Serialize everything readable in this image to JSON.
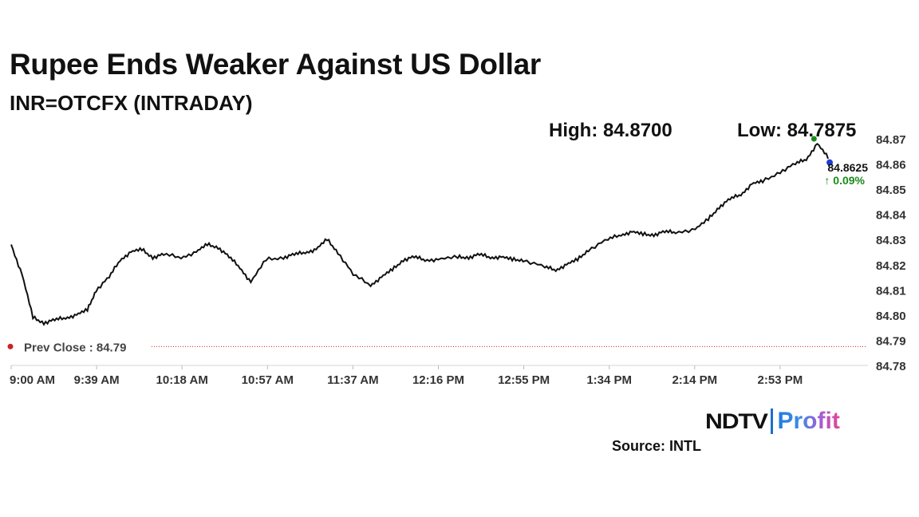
{
  "title": "Rupee Ends Weaker Against US Dollar",
  "subtitle": "INR=OTCFX (INTRADAY)",
  "high_label": "High: 84.8700",
  "low_label": "Low: 84.7875",
  "source": "Source: INTL",
  "logo": {
    "part1": "NDTV",
    "part2": "Profit"
  },
  "colors": {
    "line": "#111111",
    "prev_close": "#cc2222",
    "up": "#1a8a1a",
    "last_marker": "#1a3fd6"
  },
  "chart_data": {
    "type": "line",
    "ylim": [
      84.78,
      84.87
    ],
    "y_ticks": [
      84.87,
      84.86,
      84.85,
      84.84,
      84.83,
      84.82,
      84.81,
      84.8,
      84.79,
      84.78
    ],
    "y_tick_labels": [
      "84.87",
      "84.86",
      "84.85",
      "84.84",
      "84.83",
      "84.82",
      "84.81",
      "84.80",
      "84.79",
      "84.78"
    ],
    "x_tick_labels": [
      "9:00 AM",
      "9:39 AM",
      "10:18 AM",
      "10:57 AM",
      "11:37 AM",
      "12:16 PM",
      "12:55 PM",
      "1:34 PM",
      "2:14 PM",
      "2:53 PM"
    ],
    "prev_close": {
      "label": "Prev Close : 84.79",
      "value": 84.7875
    },
    "last": {
      "value_label": "84.8625",
      "change_label": "↑ 0.09%",
      "value": 84.8625
    },
    "series": [
      {
        "x": [
          "9:00 AM",
          "9:05 AM",
          "9:10 AM",
          "9:15 AM",
          "9:20 AM",
          "9:25 AM",
          "9:30 AM",
          "9:35 AM",
          "9:39 AM",
          "9:45 AM",
          "9:50 AM",
          "9:55 AM",
          "10:00 AM",
          "10:05 AM",
          "10:10 AM",
          "10:18 AM",
          "10:25 AM",
          "10:30 AM",
          "10:35 AM",
          "10:40 AM",
          "10:45 AM",
          "10:50 AM",
          "10:57 AM",
          "11:05 AM",
          "11:10 AM",
          "11:15 AM",
          "11:20 AM",
          "11:25 AM",
          "11:30 AM",
          "11:37 AM",
          "11:45 AM",
          "11:50 AM",
          "11:55 AM",
          "12:00 PM",
          "12:05 PM",
          "12:10 PM",
          "12:16 PM",
          "12:25 PM",
          "12:30 PM",
          "12:35 PM",
          "12:40 PM",
          "12:45 PM",
          "12:50 PM",
          "12:55 PM",
          "1:05 PM",
          "1:10 PM",
          "1:15 PM",
          "1:20 PM",
          "1:25 PM",
          "1:34 PM",
          "1:40 PM",
          "1:45 PM",
          "1:50 PM",
          "1:55 PM",
          "2:00 PM",
          "2:05 PM",
          "2:14 PM",
          "2:20 PM",
          "2:25 PM",
          "2:30 PM",
          "2:35 PM",
          "2:40 PM",
          "2:45 PM",
          "2:53 PM",
          "3:00 PM",
          "3:05 PM",
          "3:10 PM",
          "3:15 PM"
        ],
        "values": [
          84.828,
          84.816,
          84.799,
          84.797,
          84.798,
          84.799,
          84.8,
          84.802,
          84.81,
          84.815,
          84.822,
          84.825,
          84.826,
          84.823,
          84.824,
          84.823,
          84.825,
          84.828,
          84.827,
          84.823,
          84.819,
          84.813,
          84.822,
          84.823,
          84.824,
          84.825,
          84.826,
          84.83,
          84.825,
          84.816,
          84.812,
          84.815,
          84.818,
          84.822,
          84.823,
          84.822,
          84.822,
          84.823,
          84.823,
          84.824,
          84.823,
          84.823,
          84.822,
          84.822,
          84.819,
          84.818,
          84.82,
          84.822,
          84.826,
          84.83,
          84.832,
          84.833,
          84.832,
          84.832,
          84.833,
          84.833,
          84.834,
          84.838,
          84.843,
          84.846,
          84.848,
          84.852,
          84.853,
          84.857,
          84.86,
          84.862,
          84.868,
          84.8625
        ]
      }
    ]
  }
}
